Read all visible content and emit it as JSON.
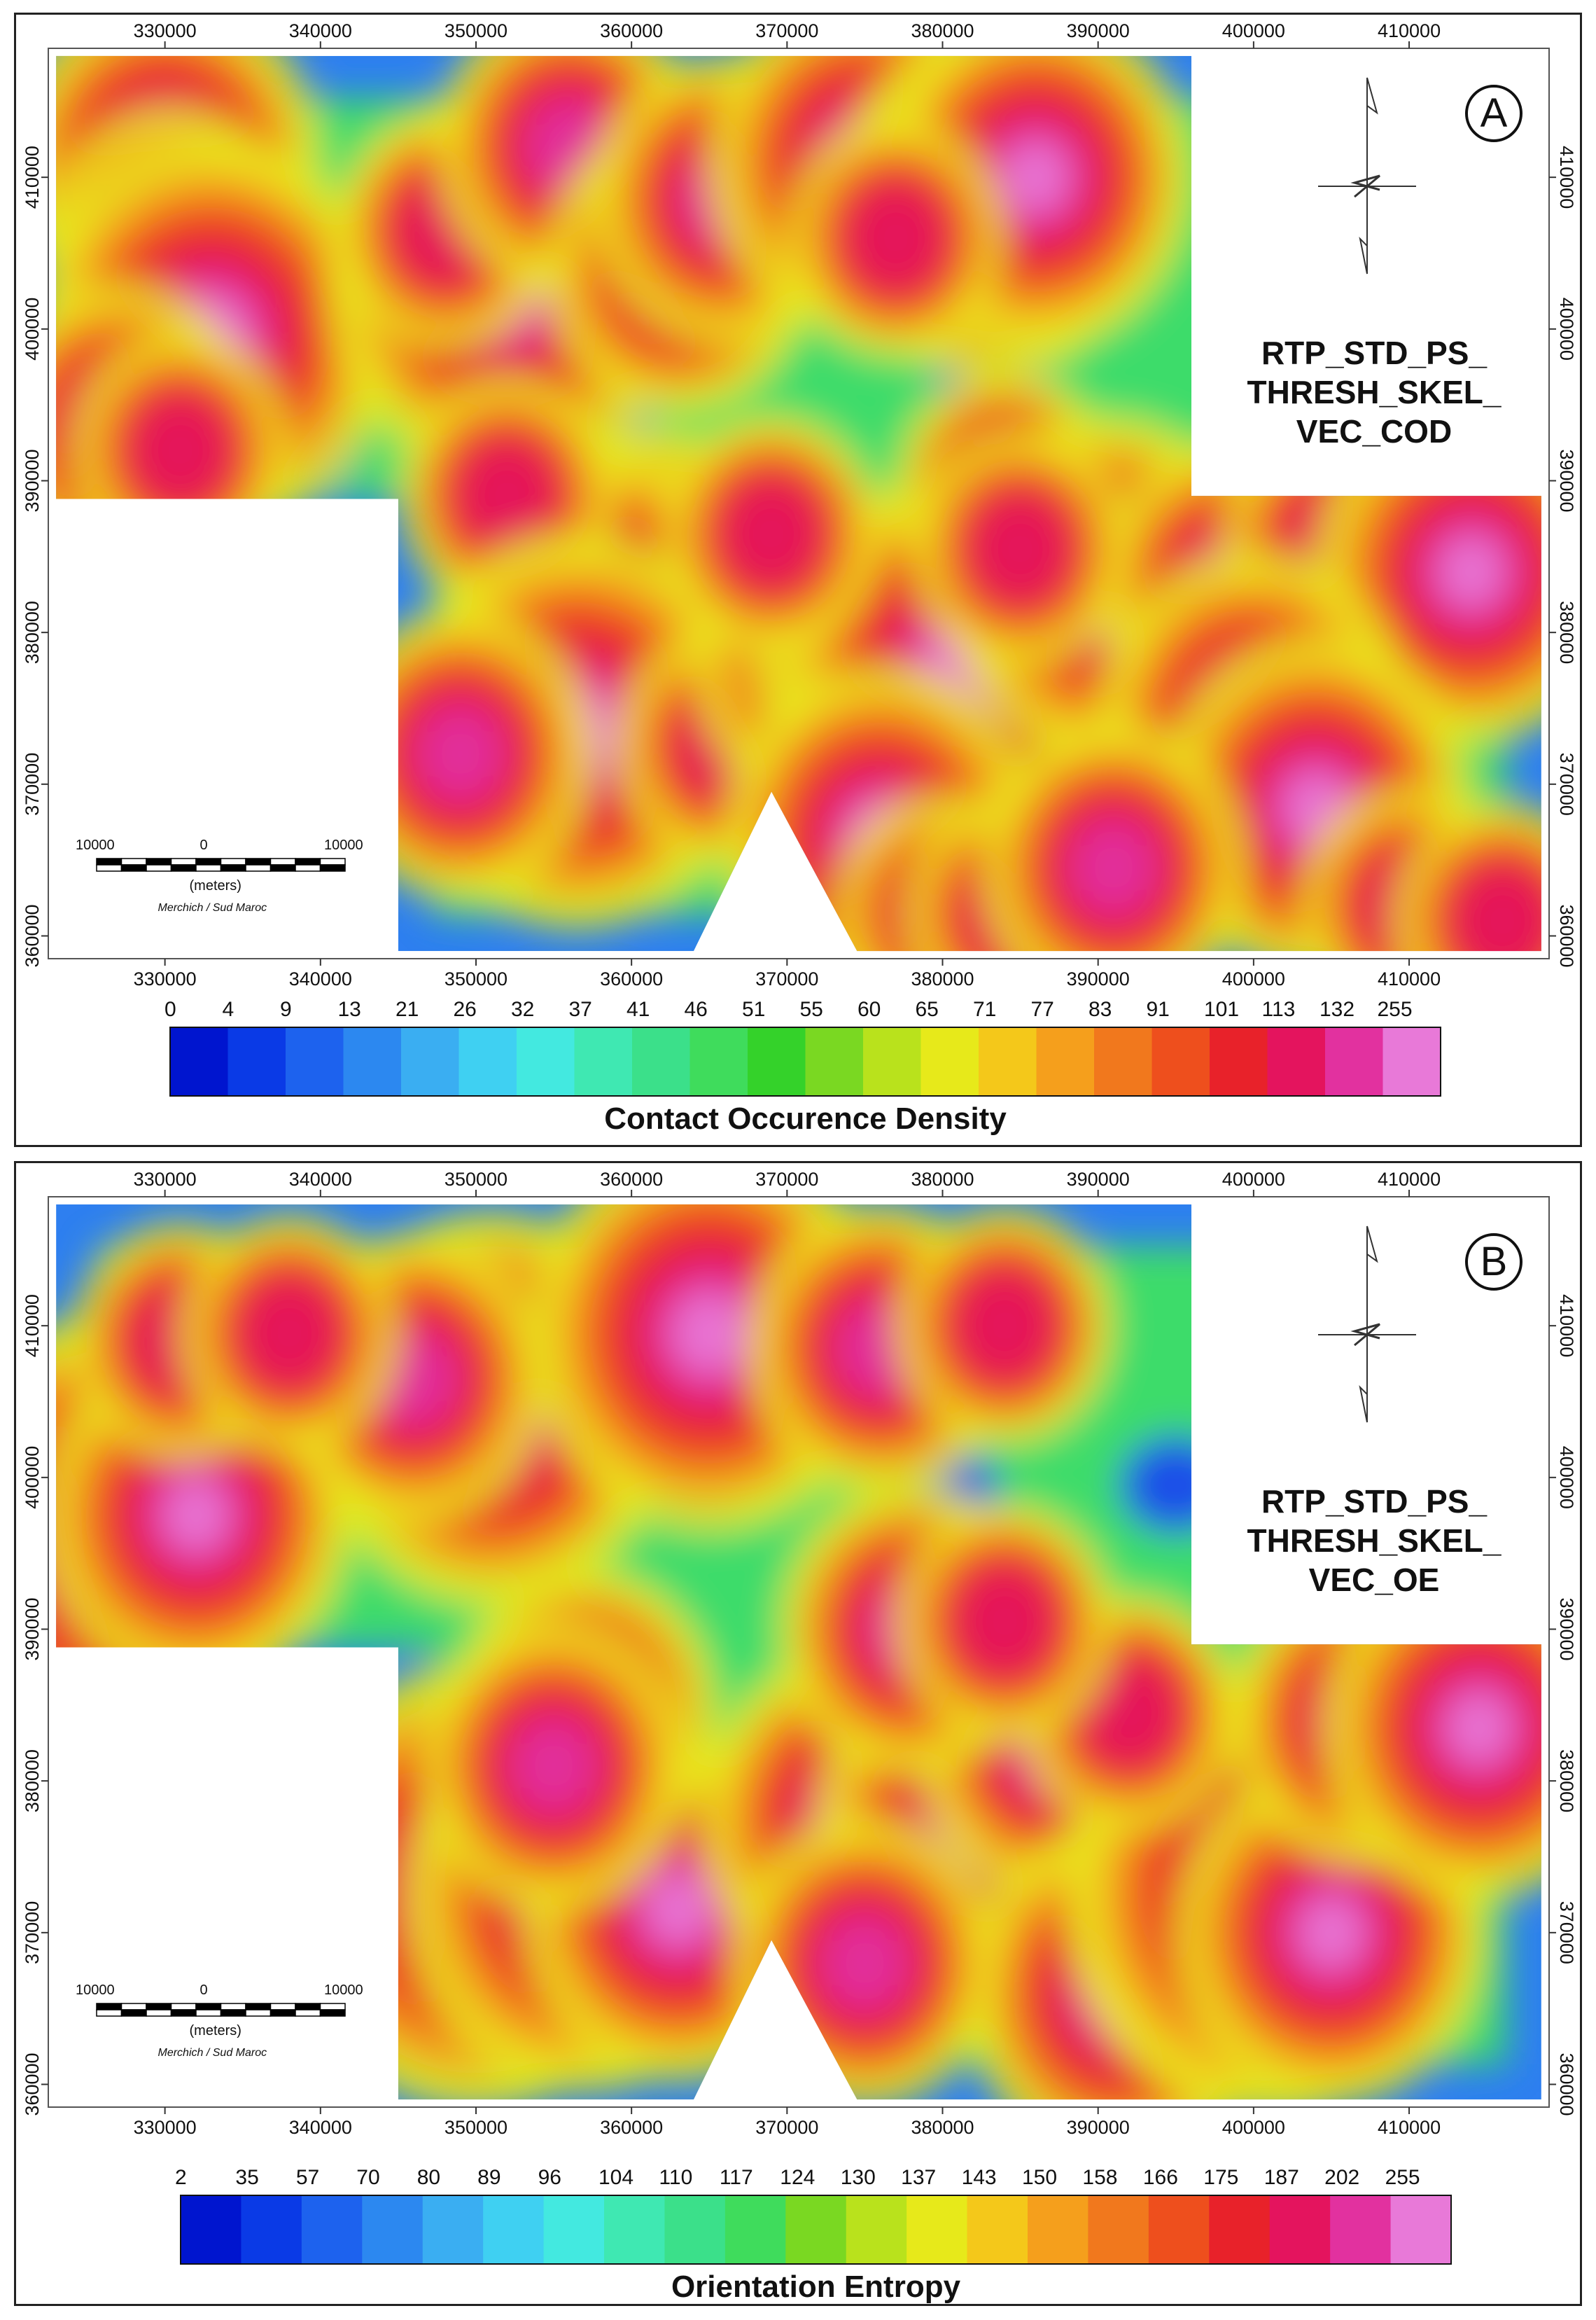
{
  "maps": [
    {
      "letter": "A",
      "title_lines": [
        "RTP_STD_PS_",
        "THRESH_SKEL_",
        "VEC_COD"
      ],
      "colorbar_title": "Contact Occurence Density",
      "colorbar_ticks": [
        "0",
        "4",
        "9",
        "13",
        "21",
        "26",
        "32",
        "37",
        "41",
        "46",
        "51",
        "55",
        "60",
        "65",
        "71",
        "77",
        "83",
        "91",
        "101",
        "113",
        "132",
        "255"
      ],
      "x_ticks": [
        "330000",
        "340000",
        "350000",
        "360000",
        "370000",
        "380000",
        "390000",
        "400000",
        "410000"
      ],
      "y_ticks": [
        "410000",
        "400000",
        "390000",
        "380000",
        "370000",
        "360000"
      ],
      "scale_bar": {
        "left": "10000",
        "center": "0",
        "right": "10000",
        "unit": "(meters)",
        "projection": "Merchich / Sud Maroc"
      },
      "hotspots": [
        [
          330000,
          411000,
          4
        ],
        [
          330500,
          405000,
          3
        ],
        [
          333000,
          399500,
          5
        ],
        [
          327000,
          393500,
          3
        ],
        [
          331000,
          392000,
          2
        ],
        [
          352000,
          403000,
          5
        ],
        [
          348000,
          406500,
          2
        ],
        [
          356000,
          412000,
          3
        ],
        [
          363000,
          404000,
          3
        ],
        [
          366000,
          408500,
          3
        ],
        [
          375000,
          411000,
          4
        ],
        [
          383000,
          408000,
          4
        ],
        [
          386000,
          410000,
          4
        ],
        [
          377000,
          406000,
          2
        ],
        [
          361000,
          384000,
          3
        ],
        [
          358000,
          381000,
          4
        ],
        [
          352000,
          389000,
          2
        ],
        [
          356500,
          373500,
          5
        ],
        [
          349000,
          372000,
          3
        ],
        [
          366000,
          372500,
          2
        ],
        [
          372500,
          378000,
          3
        ],
        [
          376000,
          379000,
          3
        ],
        [
          381000,
          377500,
          5
        ],
        [
          376000,
          366500,
          4
        ],
        [
          380000,
          361500,
          2
        ],
        [
          384500,
          361500,
          2
        ],
        [
          384000,
          389500,
          2
        ],
        [
          390500,
          383000,
          4
        ],
        [
          398500,
          383000,
          3
        ],
        [
          405000,
          386000,
          2
        ],
        [
          414000,
          384000,
          4
        ],
        [
          400000,
          374000,
          4
        ],
        [
          404000,
          368500,
          4
        ],
        [
          391000,
          364500,
          3
        ],
        [
          410000,
          362000,
          2
        ],
        [
          416000,
          361000,
          2
        ],
        [
          385000,
          385500,
          2
        ],
        [
          369000,
          386500,
          2
        ]
      ],
      "coldspots": [
        [
          343000,
          401000
        ],
        [
          365000,
          401500
        ],
        [
          358000,
          395500
        ],
        [
          372500,
          387500
        ],
        [
          389000,
          377500
        ],
        [
          405500,
          377500
        ],
        [
          383000,
          397500
        ],
        [
          339000,
          392500
        ]
      ]
    },
    {
      "letter": "B",
      "title_lines": [
        "RTP_STD_PS_",
        "THRESH_SKEL_",
        "VEC_OE"
      ],
      "colorbar_title": "Orientation Entropy",
      "colorbar_ticks": [
        "2",
        "35",
        "57",
        "70",
        "80",
        "89",
        "96",
        "104",
        "110",
        "117",
        "124",
        "130",
        "137",
        "143",
        "150",
        "158",
        "166",
        "175",
        "187",
        "202",
        "255"
      ],
      "x_ticks": [
        "330000",
        "340000",
        "350000",
        "360000",
        "370000",
        "380000",
        "390000",
        "400000",
        "410000"
      ],
      "y_ticks": [
        "410000",
        "400000",
        "390000",
        "380000",
        "370000",
        "360000"
      ],
      "scale_bar": {
        "left": "10000",
        "center": "0",
        "right": "10000",
        "unit": "(meters)",
        "projection": "Merchich / Sud Maroc"
      },
      "hotspots": [
        [
          326500,
          396000,
          6
        ],
        [
          332000,
          397500,
          4
        ],
        [
          351000,
          404500,
          5
        ],
        [
          346000,
          406500,
          3
        ],
        [
          365000,
          409500,
          5
        ],
        [
          376000,
          408500,
          3
        ],
        [
          384000,
          410000,
          2
        ],
        [
          350000,
          373000,
          6
        ],
        [
          357000,
          372500,
          5
        ],
        [
          363000,
          371500,
          4
        ],
        [
          357000,
          384500,
          3
        ],
        [
          374500,
          377500,
          4
        ],
        [
          382000,
          377500,
          4
        ],
        [
          387000,
          382000,
          3
        ],
        [
          391500,
          366000,
          4
        ],
        [
          397000,
          370000,
          3
        ],
        [
          401000,
          372500,
          6
        ],
        [
          405000,
          370000,
          4
        ],
        [
          407000,
          384000,
          3
        ],
        [
          414500,
          383500,
          4
        ],
        [
          392000,
          384500,
          2
        ],
        [
          378000,
          390000,
          3
        ],
        [
          384000,
          390500,
          2
        ],
        [
          375000,
          368000,
          3
        ],
        [
          331000,
          409000,
          2
        ],
        [
          338000,
          409500,
          2
        ],
        [
          355000,
          381000,
          3
        ]
      ],
      "coldspots": [
        [
          341000,
          404500
        ],
        [
          364000,
          400000
        ],
        [
          380000,
          399000
        ],
        [
          395000,
          399500
        ],
        [
          372000,
          383000
        ],
        [
          393000,
          377000
        ],
        [
          382000,
          368500
        ],
        [
          333000,
          386000
        ]
      ]
    }
  ]
}
